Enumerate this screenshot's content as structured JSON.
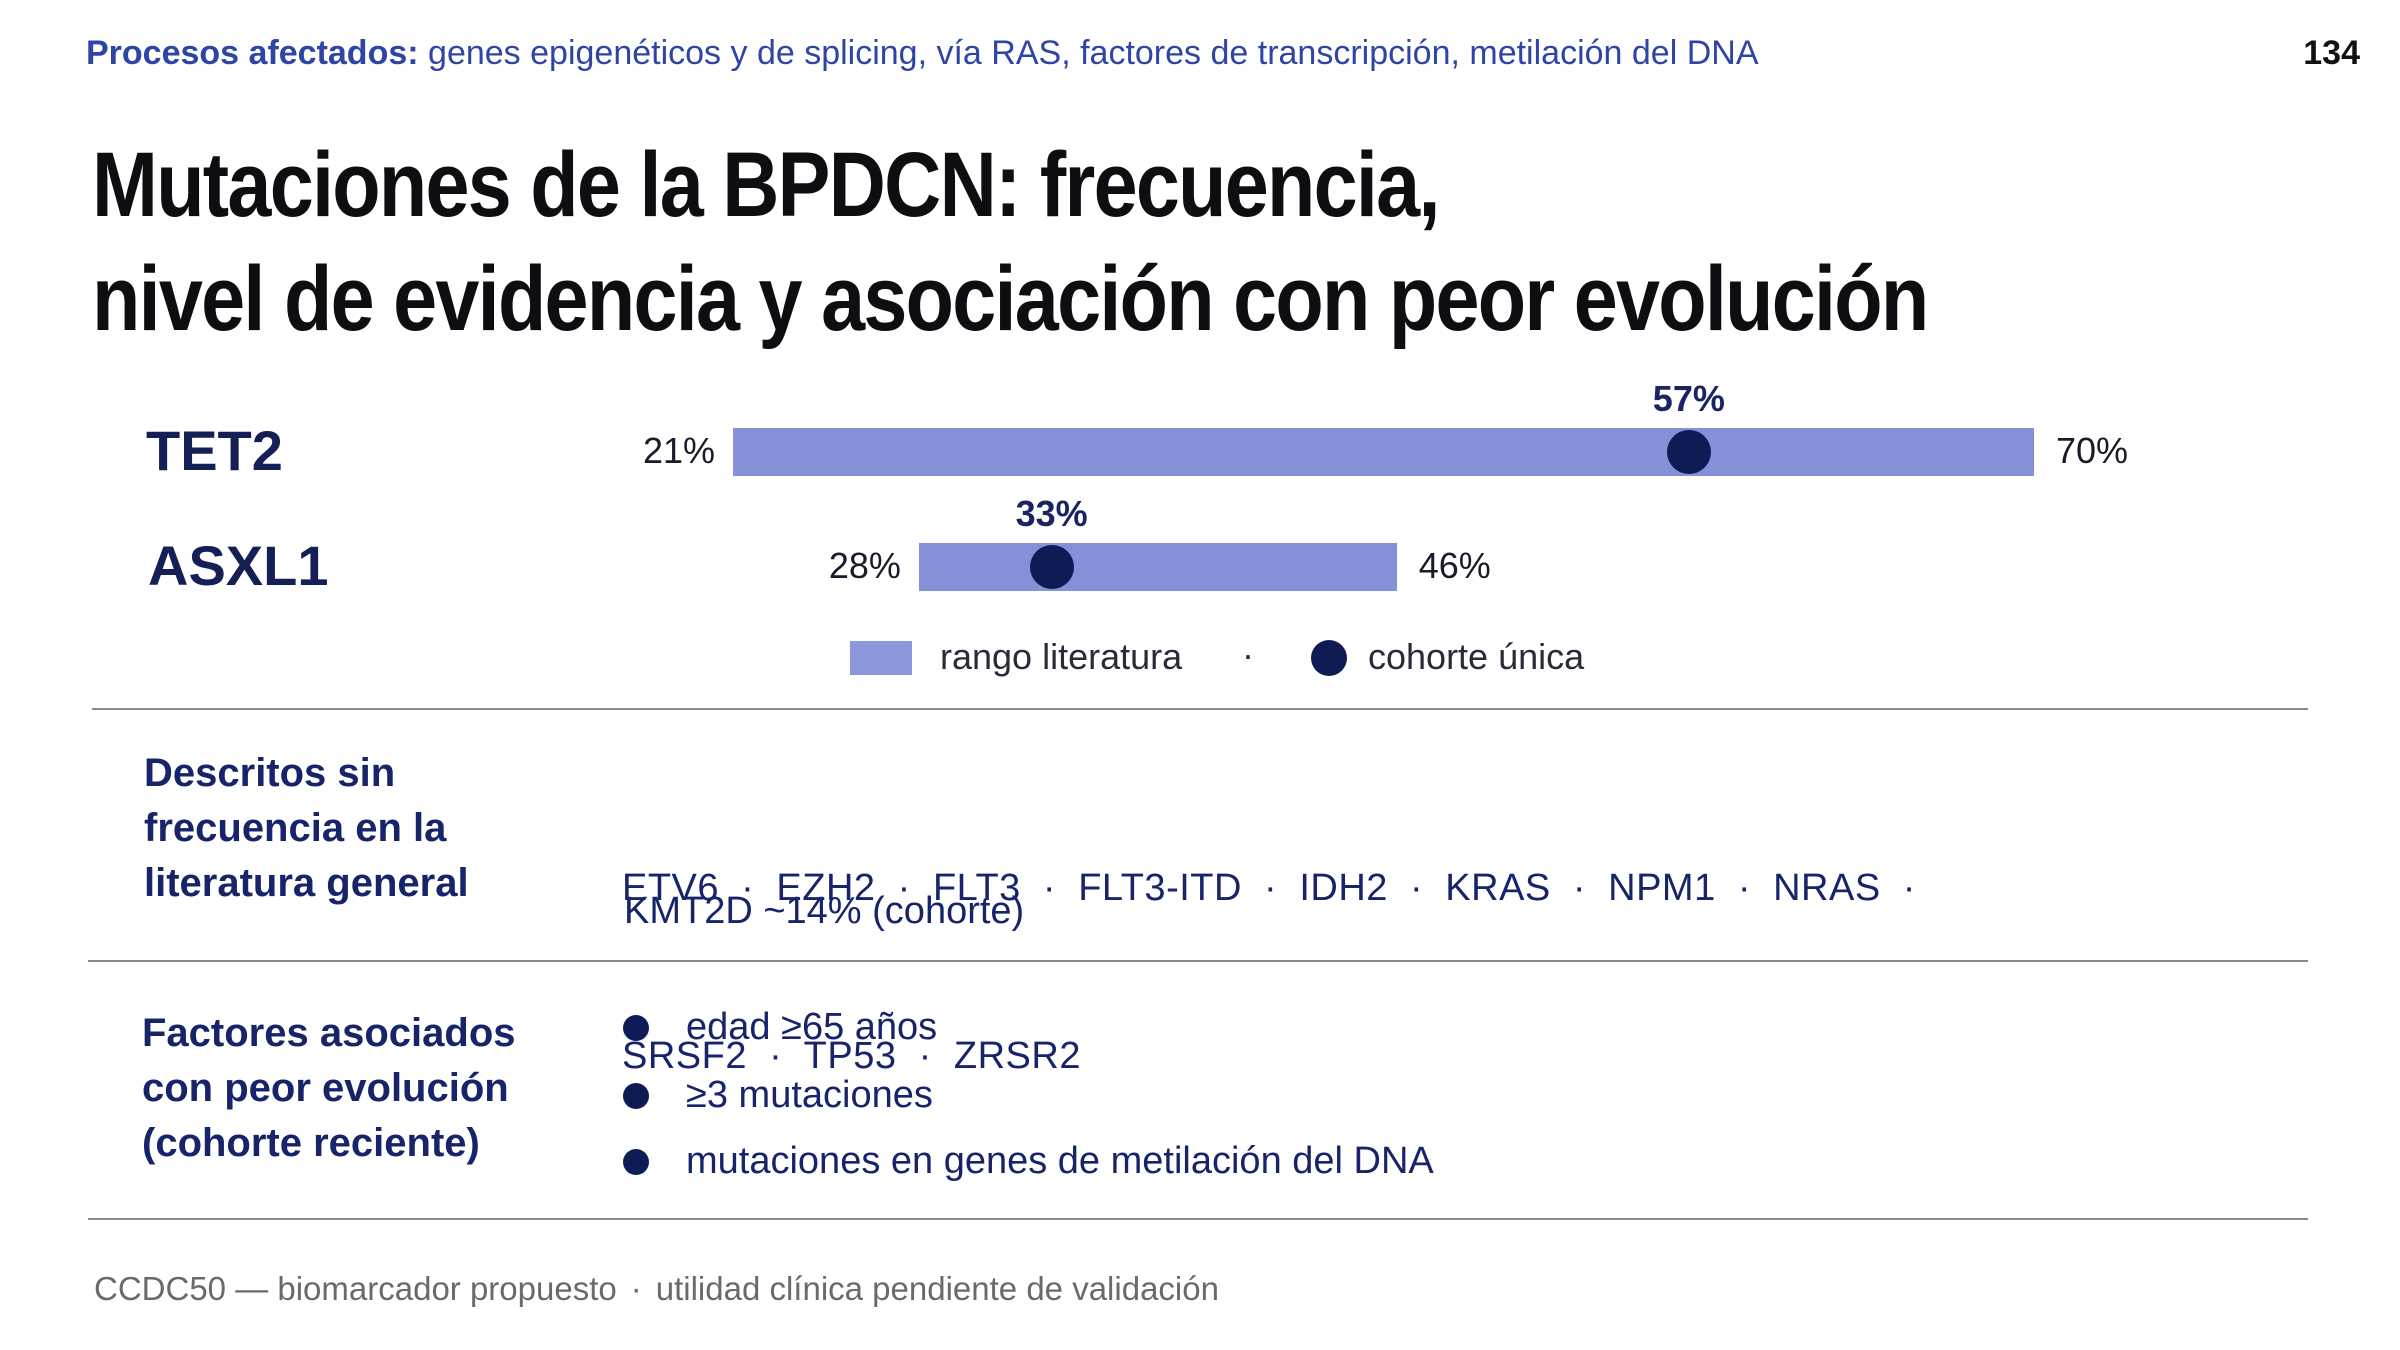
{
  "header": {
    "topic_label": "Procesos afectados:",
    "topic_text": "genes epigenéticos y de splicing, vía RAS, factores de transcripción, metilación del DNA",
    "page_number": "134"
  },
  "title": {
    "line1": "Mutaciones de la BPDCN: frecuencia,",
    "line2": "nivel de evidencia y asociación con peor evolución"
  },
  "chart_data": {
    "type": "range-dot",
    "xlim": [
      0,
      100
    ],
    "series": [
      {
        "gene": "TET2",
        "low": 21,
        "high": 70,
        "cohort": 57,
        "low_label": "21%",
        "high_label": "70%",
        "cohort_label": "57%"
      },
      {
        "gene": "ASXL1",
        "low": 28,
        "high": 46,
        "cohort": 33,
        "low_label": "28%",
        "high_label": "46%",
        "cohort_label": "33%"
      }
    ],
    "legend": {
      "range": "rango literatura",
      "separator": "·",
      "cohort": "cohorte única"
    },
    "colors": {
      "bar": "#8590d8",
      "dot": "#0f1b55"
    }
  },
  "section_described": {
    "heading": [
      "Descritos sin",
      "frecuencia en la",
      "literatura general"
    ],
    "genes_line1": "ETV6  ·  EZH2  ·  FLT3  ·  FLT3-ITD  ·  IDH2  ·  KRAS  ·  NPM1  ·  NRAS  ·",
    "genes_line2": "SRSF2  ·  TP53  ·  ZRSR2",
    "kmt": "KMT2D ~14% (cohorte)"
  },
  "section_factors": {
    "heading": [
      "Factores asociados",
      "con peor evolución",
      "(cohorte reciente)"
    ],
    "items": [
      "edad ≥65 años",
      "≥3 mutaciones",
      "mutaciones en genes de metilación del DNA"
    ]
  },
  "footer": {
    "left": "CCDC50 — biomarcador propuesto",
    "separator": "·",
    "right": "utilidad clínica pendiente de validación"
  }
}
